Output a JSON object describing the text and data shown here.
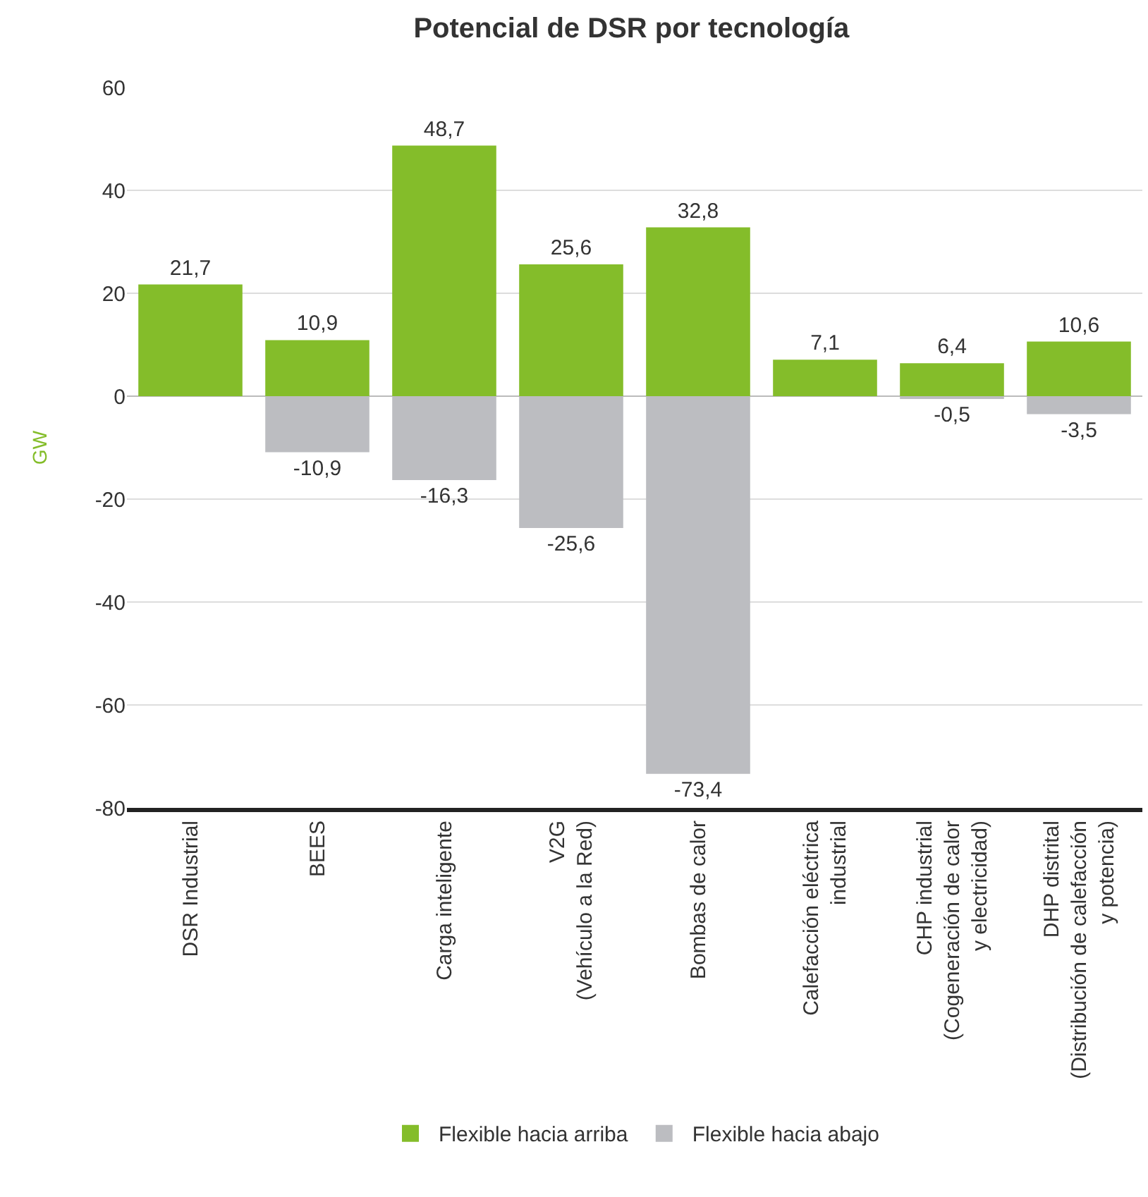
{
  "chart_data": {
    "type": "bar",
    "title": "Potencial de DSR por tecnología",
    "ylabel": "GW",
    "categories": [
      "DSR Industrial",
      "BEES",
      "Carga inteligente",
      "V2G\n(Vehículo a la Red)",
      "Bombas de calor",
      "Calefacción eléctrica\nindustrial",
      "CHP industrial\n(Cogeneración de calor\ny electricidad)",
      "DHP distrital\n(Distribución de calefacción\ny potencia)"
    ],
    "series": [
      {
        "name": "Flexible hacia arriba",
        "color": "#84bd2a",
        "values": [
          21.7,
          10.9,
          48.7,
          25.6,
          32.8,
          7.1,
          6.4,
          10.6
        ],
        "value_labels": [
          "21,7",
          "10,9",
          "48,7",
          "25,6",
          "32,8",
          "7,1",
          "6,4",
          "10,6"
        ]
      },
      {
        "name": "Flexible hacia abajo",
        "color": "#bcbdc1",
        "values": [
          null,
          -10.9,
          -16.3,
          -25.6,
          -73.4,
          null,
          -0.5,
          -3.5
        ],
        "value_labels": [
          null,
          "-10,9",
          "-16,3",
          "-25,6",
          "-73,4",
          null,
          "-0,5",
          "-3,5"
        ]
      }
    ],
    "stacked": true,
    "ylim": [
      -80,
      60
    ],
    "yticks": [
      -80,
      -60,
      -40,
      -20,
      0,
      20,
      40,
      60
    ],
    "grid": "y",
    "legend": "bottom"
  }
}
